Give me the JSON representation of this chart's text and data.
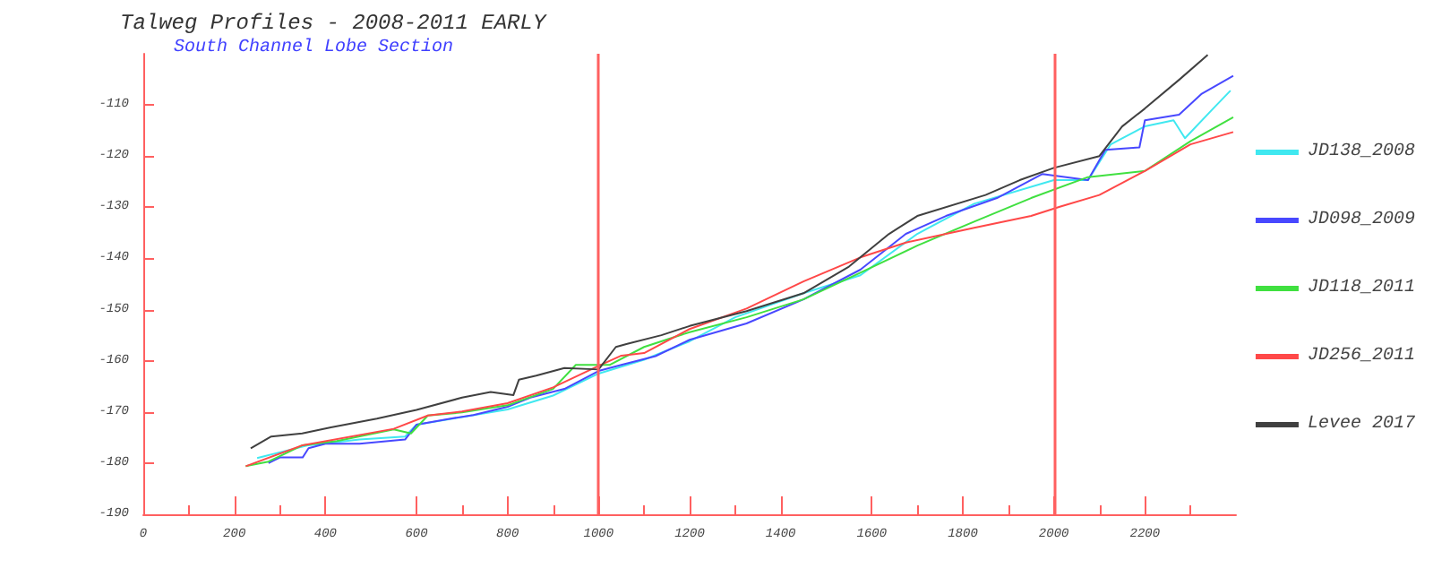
{
  "chart_data": {
    "type": "line",
    "title": "Talweg Profiles - 2008-2011 EARLY",
    "subtitle": "South Channel Lobe Section",
    "xlim": [
      0,
      2400
    ],
    "xticks": [
      0,
      200,
      400,
      600,
      800,
      1000,
      1200,
      1400,
      1600,
      1800,
      2000,
      2200
    ],
    "ylim": [
      -190,
      -100
    ],
    "yticks": [
      -190,
      -180,
      -170,
      -160,
      -150,
      -140,
      -130,
      -120,
      -110
    ],
    "grid": false,
    "legend": "right",
    "marker": "none",
    "line_style": "solid",
    "ref_lines": [
      {
        "axis": "x",
        "value": 1000,
        "color": "#ff6060"
      },
      {
        "axis": "x",
        "value": 2000,
        "color": "#ff6060"
      }
    ],
    "series": [
      {
        "name": "JD138_2008",
        "color": "#40e8f0",
        "x": [
          250,
          363,
          475,
          575,
          600,
          700,
          800,
          900,
          1000,
          1100,
          1200,
          1300,
          1450,
          1575,
          1700,
          1825,
          2000,
          2075,
          2125,
          2200,
          2263,
          2288,
          2350,
          2388
        ],
        "values": [
          -179,
          -176.5,
          -175.4,
          -174.8,
          -172.5,
          -171,
          -169.5,
          -166.8,
          -162.5,
          -159.8,
          -156.2,
          -151.5,
          -146.8,
          -143.3,
          -135.2,
          -129.3,
          -124.7,
          -124.7,
          -117.7,
          -114.2,
          -113,
          -116.5,
          -110.7,
          -107.2
        ]
      },
      {
        "name": "JD098_2009",
        "color": "#4848ff",
        "x": [
          275,
          300,
          350,
          363,
          400,
          475,
          575,
          600,
          675,
          725,
          800,
          850,
          925,
          1000,
          1050,
          1125,
          1200,
          1325,
          1450,
          1575,
          1675,
          1763,
          1875,
          1975,
          2075,
          2113,
          2188,
          2200,
          2275,
          2325,
          2394
        ],
        "values": [
          -180,
          -178.9,
          -178.9,
          -177.1,
          -176.2,
          -176.2,
          -175.4,
          -172.5,
          -171.3,
          -170.6,
          -169,
          -167.2,
          -165.5,
          -162,
          -160.8,
          -159.1,
          -155.9,
          -152.7,
          -148,
          -142.2,
          -135.2,
          -131.7,
          -128.2,
          -123.5,
          -124.7,
          -118.8,
          -118.3,
          -113,
          -111.9,
          -107.8,
          -104.3
        ]
      },
      {
        "name": "JD118_2011",
        "color": "#40e040",
        "x": [
          225,
          275,
          350,
          425,
          550,
          588,
          625,
          700,
          800,
          900,
          950,
          1025,
          1100,
          1200,
          1325,
          1450,
          1575,
          1700,
          1825,
          1950,
          2075,
          2200,
          2300,
          2394
        ],
        "values": [
          -180.6,
          -179.7,
          -176.5,
          -175.7,
          -173.4,
          -174.2,
          -170.7,
          -170.1,
          -168.7,
          -165.5,
          -160.8,
          -160.8,
          -157.3,
          -154.4,
          -151.5,
          -148,
          -142.8,
          -137.5,
          -132.8,
          -128.2,
          -124.1,
          -122.9,
          -117.1,
          -112.4
        ]
      },
      {
        "name": "JD256_2011",
        "color": "#ff4848",
        "x": [
          225,
          350,
          550,
          625,
          700,
          800,
          900,
          1000,
          1050,
          1100,
          1200,
          1325,
          1450,
          1575,
          1675,
          1825,
          1950,
          2013,
          2100,
          2200,
          2300,
          2394
        ],
        "values": [
          -180.6,
          -176.5,
          -173.3,
          -170.7,
          -169.9,
          -168.3,
          -165.2,
          -161,
          -159,
          -158.5,
          -153.8,
          -149.8,
          -144.5,
          -139.8,
          -136.9,
          -134,
          -131.7,
          -129.9,
          -127.6,
          -122.9,
          -117.7,
          -115.3
        ]
      },
      {
        "name": "Levee 2017",
        "color": "#404040",
        "x": [
          236,
          281,
          349,
          412,
          513,
          600,
          700,
          763,
          813,
          825,
          863,
          925,
          1000,
          1038,
          1063,
          1138,
          1200,
          1325,
          1450,
          1550,
          1638,
          1700,
          1850,
          1925,
          2000,
          2100,
          2150,
          2200,
          2275,
          2338
        ],
        "values": [
          -177.1,
          -174.8,
          -174.2,
          -173,
          -171.3,
          -169.6,
          -167.2,
          -166.1,
          -166.7,
          -163.7,
          -162.9,
          -161.4,
          -161.7,
          -157.3,
          -156.7,
          -155,
          -153.2,
          -150.3,
          -146.8,
          -141.6,
          -135.2,
          -131.7,
          -127.6,
          -124.7,
          -122.3,
          -120,
          -114.2,
          -110.7,
          -105.1,
          -100.2
        ]
      }
    ]
  }
}
